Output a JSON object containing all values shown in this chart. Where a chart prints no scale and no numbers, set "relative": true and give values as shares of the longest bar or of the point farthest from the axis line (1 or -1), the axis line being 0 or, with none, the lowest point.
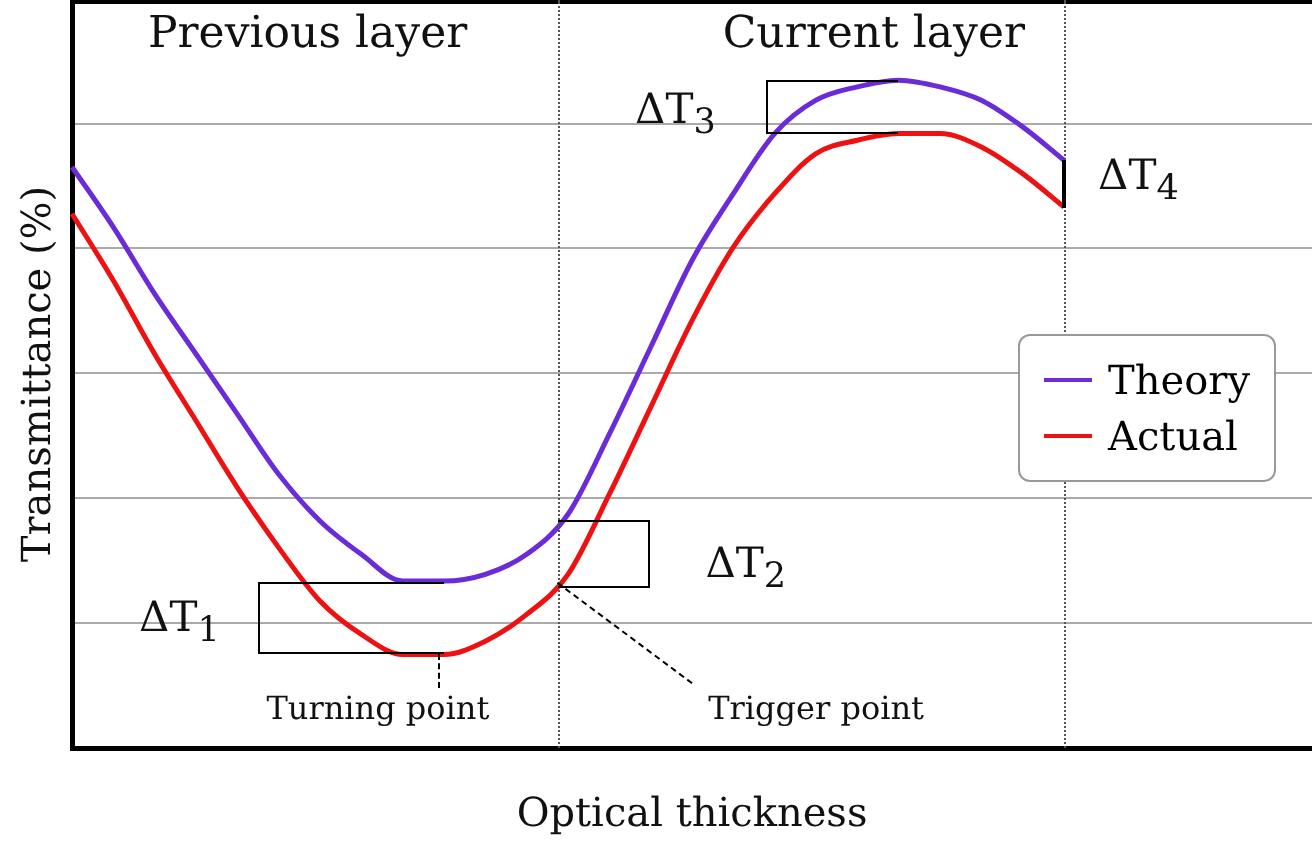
{
  "chart_data": {
    "type": "line",
    "relative": true,
    "xlabel": "Optical thickness",
    "ylabel": "Transmittance (%)",
    "categories": [
      null,
      null,
      null,
      null,
      null,
      null,
      null,
      null,
      null,
      null,
      null,
      null,
      null,
      null,
      null,
      null,
      null,
      null,
      null,
      null,
      null,
      null,
      null,
      null,
      null,
      null,
      null,
      null,
      null,
      null,
      null
    ],
    "series": [
      {
        "name": "Theory",
        "color": "#6a2bd8",
        "values": [
          0.87,
          0.78,
          0.68,
          0.59,
          0.5,
          0.41,
          0.34,
          0.29,
          0.25,
          0.25,
          0.26,
          0.29,
          0.35,
          0.47,
          0.6,
          0.73,
          0.83,
          0.92,
          0.97,
          0.99,
          1,
          0.99,
          0.97,
          0.93,
          0.88,
          null,
          null,
          null,
          null,
          null,
          null
        ]
      },
      {
        "name": "Actual",
        "color": "#ee1111",
        "values": [
          0.8,
          0.7,
          0.59,
          0.49,
          0.39,
          0.3,
          0.22,
          0.17,
          0.14,
          0.14,
          0.16,
          0.2,
          0.26,
          0.38,
          0.51,
          0.64,
          0.75,
          0.83,
          0.89,
          0.91,
          0.92,
          0.92,
          0.9,
          0.86,
          0.81,
          null,
          null,
          null,
          null,
          null,
          null
        ]
      }
    ],
    "annotations": [
      "Previous layer",
      "Current layer",
      "ΔT$_{1}$",
      "ΔT$_{2}$",
      "ΔT$_{3}$",
      "ΔT$_{4}$",
      "Turning point",
      "Trigger point"
    ],
    "grid": "y",
    "legend": "right",
    "marker": "none",
    "line_style": "solid"
  }
}
